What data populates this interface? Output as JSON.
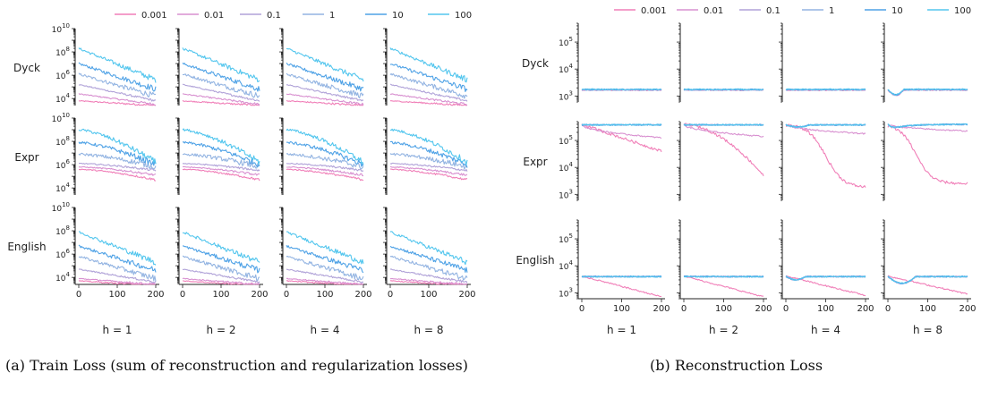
{
  "captions": {
    "a": "(a) Train Loss (sum of reconstruction and regularization losses)",
    "b": "(b) Reconstruction Loss"
  },
  "colors": {
    "0.001": "#f07fb8",
    "0.01": "#d890d0",
    "0.1": "#b0a2d8",
    "1": "#93b4e2",
    "10": "#4fa2e6",
    "100": "#53c6ee"
  },
  "chart_data": [
    {
      "type": "line",
      "panel": "train_loss",
      "legend": [
        "0.001",
        "0.01",
        "0.1",
        "1",
        "10",
        "100"
      ],
      "legend_placement": "top-center",
      "rows": [
        "Dyck",
        "Expr",
        "English"
      ],
      "columns": [
        "h = 1",
        "h = 2",
        "h = 4",
        "h = 8"
      ],
      "x_ticks": [
        "0",
        "100",
        "200"
      ],
      "xlim": [
        0,
        200
      ],
      "yscale": "log",
      "ylim": [
        3000,
        10000000000
      ],
      "y_ticks": [
        "10^4",
        "10^6",
        "10^8",
        "10^10"
      ],
      "grid": false,
      "series_endpoints": {
        "note_free": true,
        "Dyck": {
          "x": [
            0,
            200
          ],
          "0.001": [
            6000,
            3000
          ],
          "0.01": [
            30000,
            4000
          ],
          "0.1": [
            200000,
            8000
          ],
          "1": [
            1500000,
            30000
          ],
          "10": [
            10000000,
            150000
          ],
          "100": [
            200000000,
            1000000
          ]
        },
        "Expr": {
          "x": [
            0,
            200
          ],
          "0.001": [
            400000,
            60000
          ],
          "0.01": [
            600000,
            120000
          ],
          "0.1": [
            1500000,
            250000
          ],
          "1": [
            10000000,
            700000
          ],
          "10": [
            100000000,
            1000000
          ],
          "100": [
            1000000000,
            2000000
          ]
        },
        "English": {
          "x": [
            0,
            200
          ],
          "0.001": [
            4000,
            2000
          ],
          "0.01": [
            8000,
            2500
          ],
          "0.1": [
            60000,
            4000
          ],
          "1": [
            800000,
            8000
          ],
          "10": [
            6000000,
            50000
          ],
          "100": [
            80000000,
            300000
          ]
        }
      }
    },
    {
      "type": "line",
      "panel": "reconstruction_loss",
      "legend": [
        "0.001",
        "0.01",
        "0.1",
        "1",
        "10",
        "100"
      ],
      "legend_placement": "top-center",
      "rows": [
        "Dyck",
        "Expr",
        "English"
      ],
      "columns": [
        "h = 1",
        "h = 2",
        "h = 4",
        "h = 8"
      ],
      "x_ticks": [
        "0",
        "100",
        "200"
      ],
      "xlim": [
        0,
        200
      ],
      "yscale": "log",
      "ylim": [
        500,
        500000
      ],
      "y_ticks": [
        "10^3",
        "10^4",
        "10^5"
      ],
      "grid": false,
      "series_endpoints": {
        "Dyck": {
          "x": [
            0,
            200
          ],
          "all": [
            1700,
            1700
          ]
        },
        "Expr": {
          "x": [
            0,
            200
          ],
          "0.001": [
            400000,
            5000
          ],
          "0.01": [
            400000,
            150000
          ],
          "others": [
            400000,
            380000
          ]
        },
        "English": {
          "x": [
            0,
            200
          ],
          "0.001": [
            4000,
            700
          ],
          "others": [
            4000,
            4000
          ]
        }
      }
    }
  ]
}
